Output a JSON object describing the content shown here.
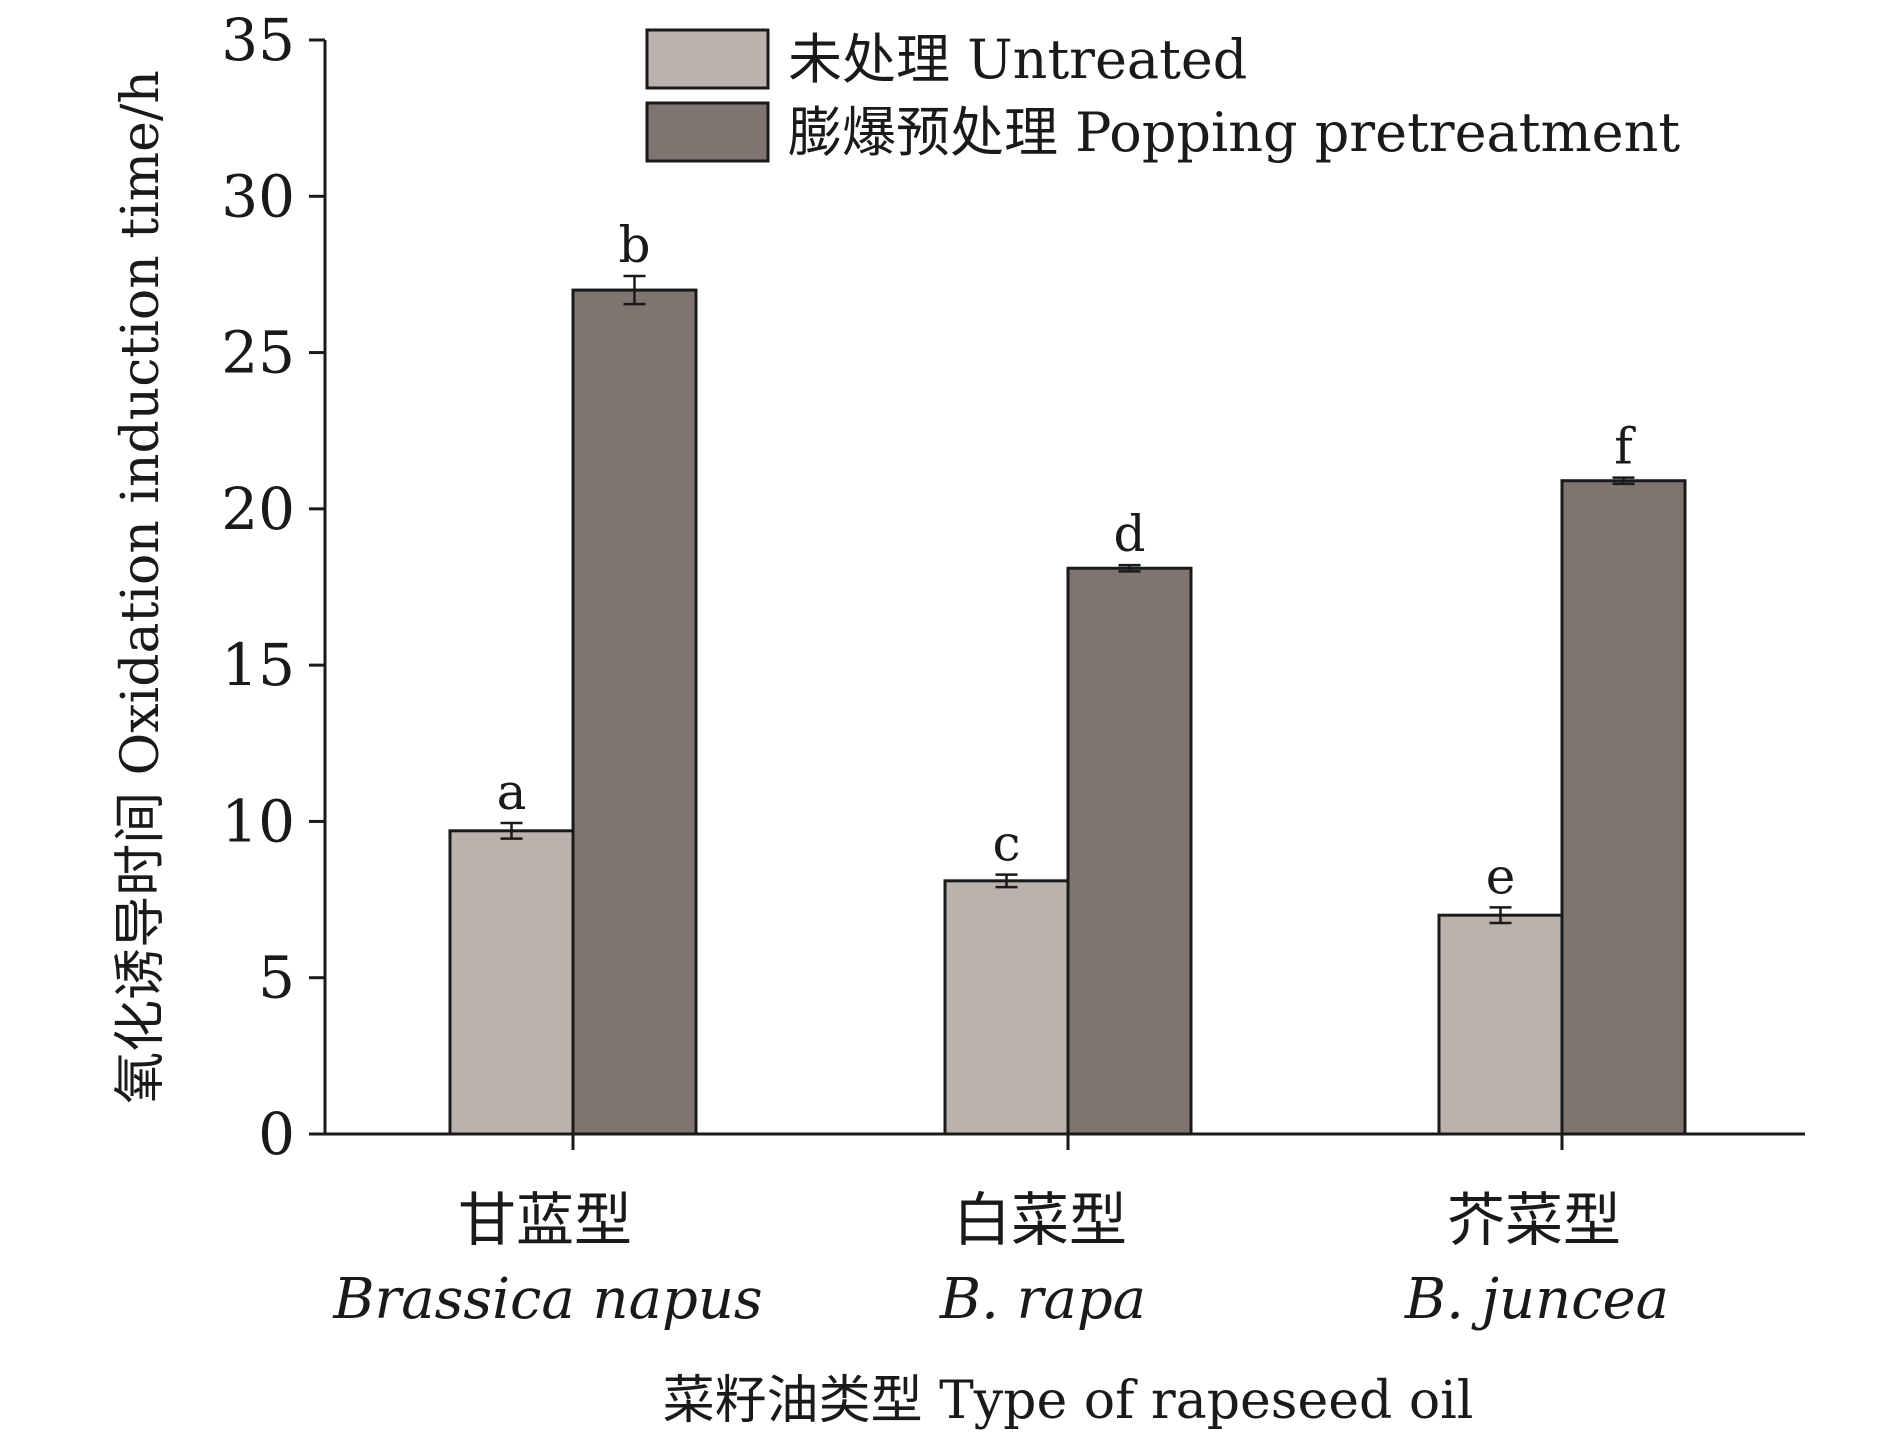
{
  "chart_data": {
    "type": "bar",
    "title": "",
    "xlabel": "菜籽油类型 Type of rapeseed oil",
    "ylabel": "氧化诱导时间 Oxidation induction time/h",
    "ylim": [
      0,
      35
    ],
    "yticks": [
      0,
      5,
      10,
      15,
      20,
      25,
      30,
      35
    ],
    "grid": false,
    "legend_position": "top",
    "categories": [
      {
        "cn": "甘蓝型",
        "latin": "Brassica napus"
      },
      {
        "cn": "白菜型",
        "latin": "B. rapa"
      },
      {
        "cn": "芥菜型",
        "latin": "B. juncea"
      }
    ],
    "series": [
      {
        "name": "未处理 Untreated",
        "color": "#bbb1ad",
        "values": [
          9.7,
          8.1,
          7.0
        ],
        "errors": [
          0.25,
          0.2,
          0.25
        ],
        "labels": [
          "a",
          "c",
          "e"
        ]
      },
      {
        "name": "膨爆预处理 Popping pretreatment",
        "color": "#7f7470",
        "values": [
          27.0,
          18.1,
          20.9
        ],
        "errors": [
          0.45,
          0.1,
          0.1
        ],
        "labels": [
          "b",
          "d",
          "f"
        ]
      }
    ]
  }
}
